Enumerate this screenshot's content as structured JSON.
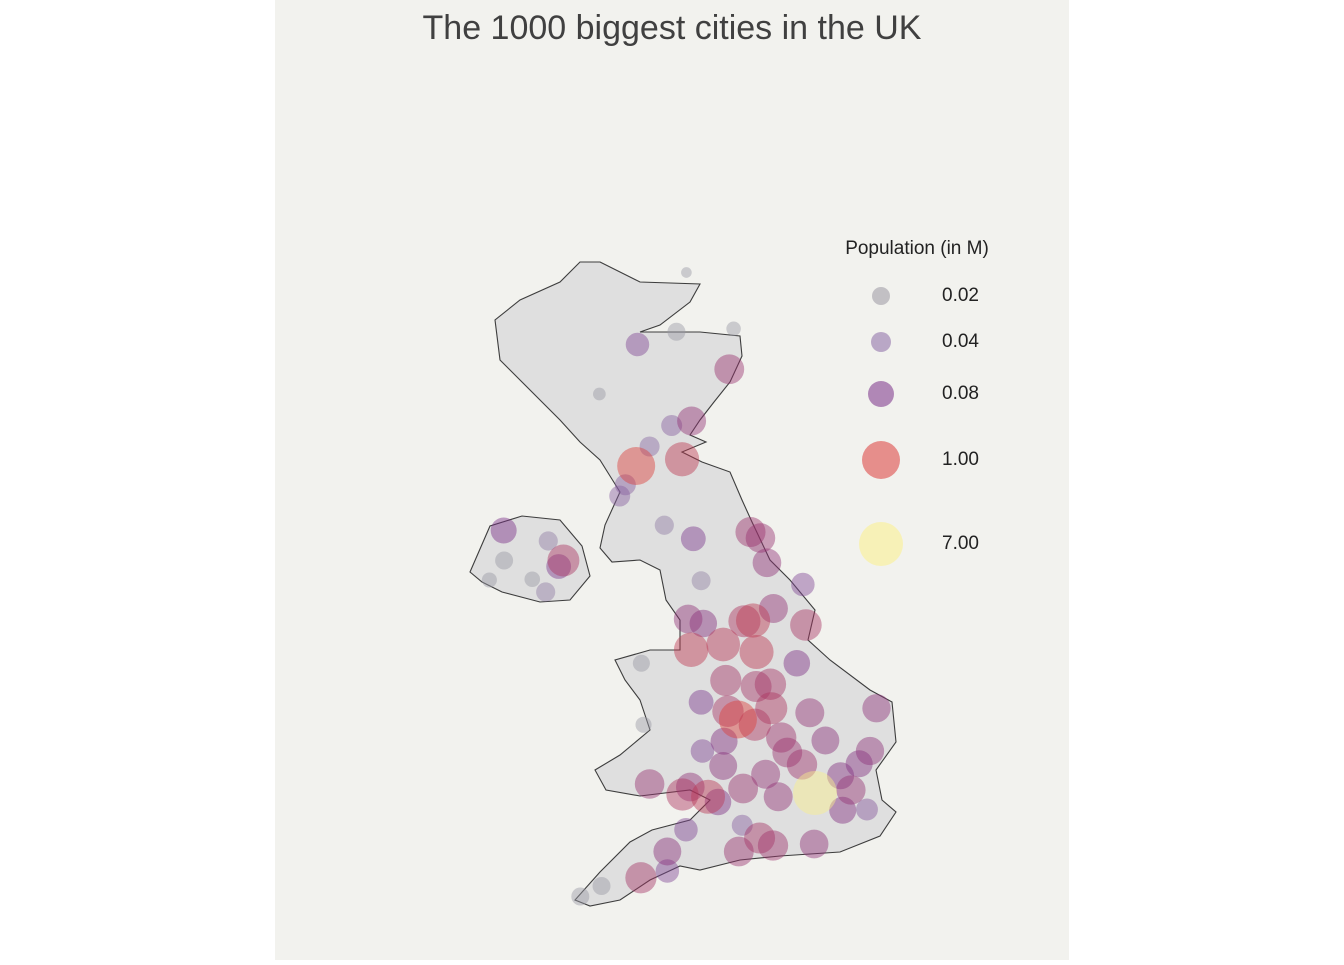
{
  "chart_data": {
    "type": "bubble-map",
    "title": "The 1000 biggest cities in the UK",
    "legend": {
      "title": "Population (in M)",
      "entries": [
        {
          "value": 0.02,
          "color": "#9a98a3"
        },
        {
          "value": 0.04,
          "color": "#8a6aa5"
        },
        {
          "value": 0.08,
          "color": "#7a2f88"
        },
        {
          "value": 1,
          "label": "1.00",
          "color": "#dc3d3a"
        },
        {
          "value": 7,
          "label": "7.00",
          "color": "#fbf08a"
        }
      ]
    },
    "cities": {
      "lon": [
        -3.09,
        -2.0,
        -3.32,
        -5.1,
        -4.13,
        -4.08,
        -5.05,
        -5.54,
        -7.3,
        -7.64,
        -6.65,
        -3.6,
        -2.75,
        -6.28,
        -6.34,
        -3.94,
        -4.63,
        -4.5,
        -3.43,
        -1.8,
        -4.22,
        -0.4,
        -3.53,
        -2.72,
        -3.1,
        -0.54,
        -2.93,
        -2.75,
        -6.04,
        -7.31,
        -2.36,
        1.08,
        0.52,
        0.9,
        0.47,
        -2.22,
        0.12,
        -2.24,
        -3.53,
        -1.08,
        -0.24,
        -3.0,
        -1.23,
        -0.14,
        1.3,
        1.15,
        -0.97,
        -1.26,
        -2.7,
        -3.05,
        -1.38,
        -2.1,
        -3.94,
        -2.97,
        -0.76,
        -1.61,
        -1.88,
        -1.78,
        0.71,
        -0.42,
        -0.9,
        -1.09,
        -1.4,
        -1.48,
        -2.18,
        -4.14,
        -1.15,
        -0.33,
        -1.47,
        -2.13,
        -1.75,
        -1.13,
        -1.51,
        -5.93,
        -3.18,
        -2.24,
        -2.59,
        -1.55,
        -2.98,
        -3.19,
        -4.25,
        -1.9,
        -0.12
      ],
      "lat": [
        58.44,
        57.69,
        57.65,
        56.82,
        53.23,
        52.41,
        50.26,
        50.12,
        54.6,
        54.34,
        54.35,
        55.07,
        54.33,
        54.86,
        54.18,
        56.12,
        55.46,
        55.61,
        56.4,
        51.07,
        57.48,
        54.28,
        50.46,
        52.06,
        51.01,
        53.23,
        54.89,
        52.71,
        54.52,
        55.0,
        51.38,
        51.28,
        51.27,
        51.89,
        51.73,
        52.19,
        52.2,
        51.86,
        50.72,
        53.96,
        52.57,
        51.58,
        54.57,
        50.82,
        52.63,
        52.06,
        51.45,
        51.75,
        53.76,
        53.82,
        54.9,
        57.15,
        51.62,
        56.46,
        52.04,
        54.98,
        50.72,
        51.56,
        51.54,
        51.88,
        52.24,
        50.8,
        50.9,
        52.92,
        53.0,
        50.37,
        52.95,
        53.74,
        53.38,
        52.59,
        53.79,
        52.63,
        52.41,
        54.6,
        51.48,
        53.48,
        51.45,
        53.8,
        53.41,
        55.95,
        55.86,
        52.48,
        51.5
      ],
      "pop": [
        0.007,
        0.013,
        0.02,
        0.01,
        0.018,
        0.016,
        0.02,
        0.02,
        0.02,
        0.014,
        0.015,
        0.03,
        0.028,
        0.03,
        0.03,
        0.04,
        0.045,
        0.045,
        0.045,
        0.045,
        0.06,
        0.06,
        0.06,
        0.06,
        0.06,
        0.09,
        0.07,
        0.07,
        0.07,
        0.08,
        0.09,
        0.05,
        0.1,
        0.1,
        0.1,
        0.1,
        0.12,
        0.12,
        0.12,
        0.15,
        0.15,
        0.14,
        0.14,
        0.14,
        0.13,
        0.13,
        0.15,
        0.15,
        0.11,
        0.14,
        0.17,
        0.18,
        0.17,
        0.15,
        0.18,
        0.19,
        0.18,
        0.18,
        0.16,
        0.2,
        0.2,
        0.2,
        0.23,
        0.23,
        0.24,
        0.24,
        0.25,
        0.26,
        0.44,
        0.25,
        0.29,
        0.29,
        0.3,
        0.28,
        0.3,
        0.4,
        0.43,
        0.45,
        0.47,
        0.45,
        1,
        1,
        7
      ]
    }
  }
}
